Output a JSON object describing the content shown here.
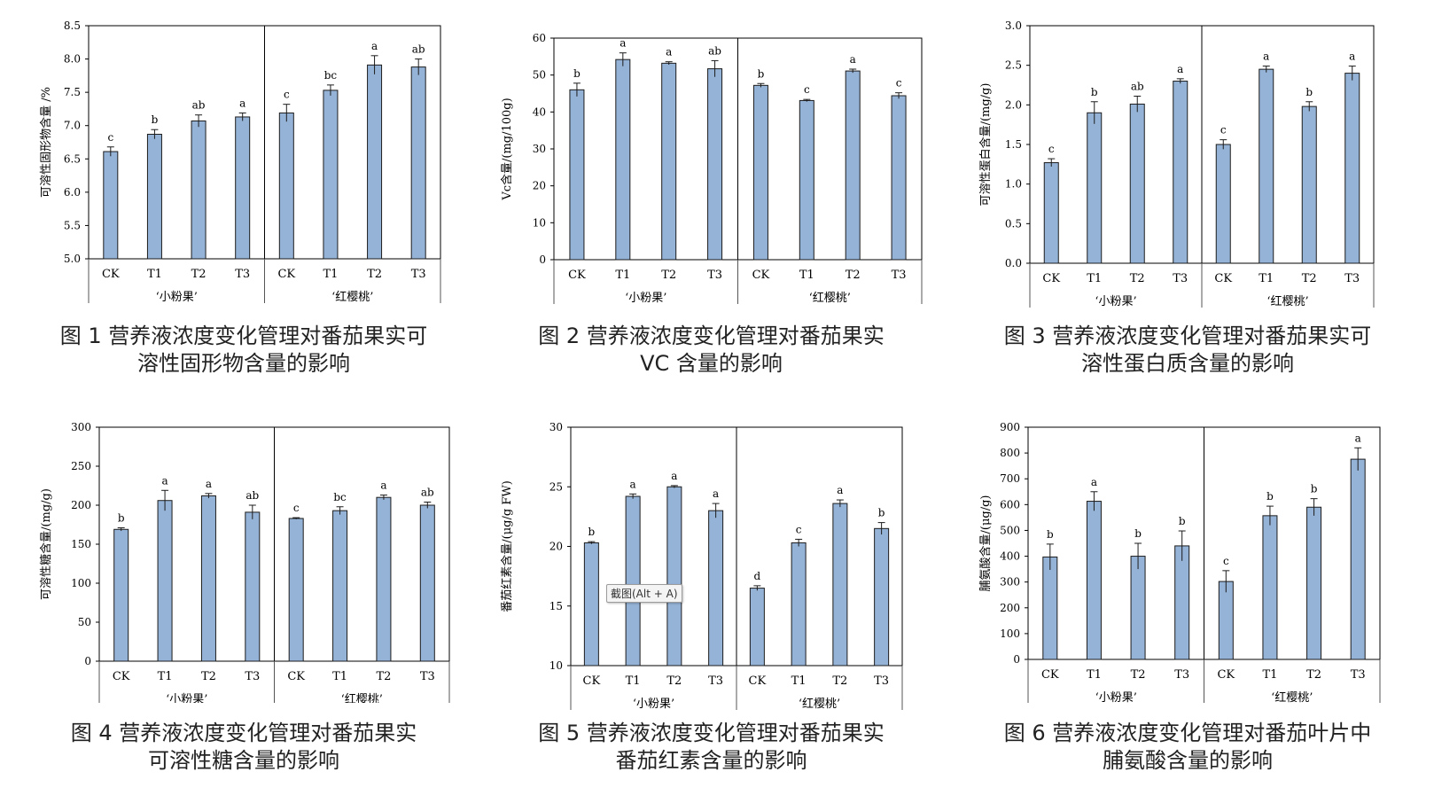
{
  "tooltip": "截图(Alt + A)",
  "colors": {
    "bar_fill": "#95b3d7",
    "bar_stroke": "#1c1c1c",
    "axis": "#000000",
    "label": "#000000"
  },
  "charts": [
    {
      "caption_lines": [
        "图 1 营养液浓度变化管理对番茄果实可",
        "溶性固形物含量的影响"
      ],
      "chart_data": {
        "type": "bar",
        "ylabel": "可溶性固形物含量 /%",
        "ylim": [
          5.0,
          8.5
        ],
        "yticks": [
          "5.0",
          "5.5",
          "6.0",
          "6.5",
          "7.0",
          "7.5",
          "8.0",
          "8.5"
        ],
        "groups": [
          {
            "name": "‘小粉果’",
            "bars": [
              {
                "label": "CK",
                "value": 6.61,
                "err": 0.07,
                "sig": "c"
              },
              {
                "label": "T1",
                "value": 6.87,
                "err": 0.07,
                "sig": "b"
              },
              {
                "label": "T2",
                "value": 7.07,
                "err": 0.09,
                "sig": "ab"
              },
              {
                "label": "T3",
                "value": 7.13,
                "err": 0.06,
                "sig": "a"
              }
            ]
          },
          {
            "name": "‘红樱桃’",
            "bars": [
              {
                "label": "CK",
                "value": 7.19,
                "err": 0.13,
                "sig": "c"
              },
              {
                "label": "T1",
                "value": 7.53,
                "err": 0.08,
                "sig": "bc"
              },
              {
                "label": "T2",
                "value": 7.91,
                "err": 0.14,
                "sig": "a"
              },
              {
                "label": "T3",
                "value": 7.88,
                "err": 0.12,
                "sig": "ab"
              }
            ]
          }
        ]
      }
    },
    {
      "caption_lines": [
        "图 2 营养液浓度变化管理对番茄果实",
        "VC 含量的影响"
      ],
      "chart_data": {
        "type": "bar",
        "ylabel": "Vc含量/(mg/100g)",
        "ylim": [
          0,
          60
        ],
        "yticks": [
          "0",
          "10",
          "20",
          "30",
          "40",
          "50",
          "60"
        ],
        "groups": [
          {
            "name": "‘小粉果’",
            "bars": [
              {
                "label": "CK",
                "value": 46.0,
                "err": 1.8,
                "sig": "b"
              },
              {
                "label": "T1",
                "value": 54.2,
                "err": 1.8,
                "sig": "a"
              },
              {
                "label": "T2",
                "value": 53.2,
                "err": 0.4,
                "sig": "a"
              },
              {
                "label": "T3",
                "value": 51.7,
                "err": 2.2,
                "sig": "ab"
              }
            ]
          },
          {
            "name": "‘红樱桃’",
            "bars": [
              {
                "label": "CK",
                "value": 47.2,
                "err": 0.5,
                "sig": "b"
              },
              {
                "label": "T1",
                "value": 43.1,
                "err": 0.3,
                "sig": "c"
              },
              {
                "label": "T2",
                "value": 51.1,
                "err": 0.5,
                "sig": "a"
              },
              {
                "label": "T3",
                "value": 44.4,
                "err": 0.8,
                "sig": "c"
              }
            ]
          }
        ]
      }
    },
    {
      "caption_lines": [
        "图 3 营养液浓度变化管理对番茄果实可",
        "溶性蛋白质含量的影响"
      ],
      "chart_data": {
        "type": "bar",
        "ylabel": "可溶性蛋白含量/(mg/g)",
        "ylim": [
          0,
          3.0
        ],
        "yticks": [
          "0.0",
          "0.5",
          "1.0",
          "1.5",
          "2.0",
          "2.5",
          "3.0"
        ],
        "groups": [
          {
            "name": "‘小粉果’",
            "bars": [
              {
                "label": "CK",
                "value": 1.27,
                "err": 0.05,
                "sig": "c"
              },
              {
                "label": "T1",
                "value": 1.9,
                "err": 0.14,
                "sig": "b"
              },
              {
                "label": "T2",
                "value": 2.01,
                "err": 0.1,
                "sig": "ab"
              },
              {
                "label": "T3",
                "value": 2.3,
                "err": 0.03,
                "sig": "a"
              }
            ]
          },
          {
            "name": "‘红樱桃’",
            "bars": [
              {
                "label": "CK",
                "value": 1.5,
                "err": 0.06,
                "sig": "c"
              },
              {
                "label": "T1",
                "value": 2.45,
                "err": 0.04,
                "sig": "a"
              },
              {
                "label": "T2",
                "value": 1.98,
                "err": 0.06,
                "sig": "b"
              },
              {
                "label": "T3",
                "value": 2.4,
                "err": 0.09,
                "sig": "a"
              }
            ]
          }
        ]
      }
    },
    {
      "caption_lines": [
        "图 4 营养液浓度变化管理对番茄果实",
        "可溶性糖含量的影响"
      ],
      "chart_data": {
        "type": "bar",
        "ylabel": "可溶性糖含量/(mg/g)",
        "ylim": [
          0,
          300
        ],
        "yticks": [
          "0",
          "50",
          "100",
          "150",
          "200",
          "250",
          "300"
        ],
        "groups": [
          {
            "name": "‘小粉果’",
            "bars": [
              {
                "label": "CK",
                "value": 169,
                "err": 2,
                "sig": "b"
              },
              {
                "label": "T1",
                "value": 206,
                "err": 13,
                "sig": "a"
              },
              {
                "label": "T2",
                "value": 212,
                "err": 3,
                "sig": "a"
              },
              {
                "label": "T3",
                "value": 191,
                "err": 9,
                "sig": "ab"
              }
            ]
          },
          {
            "name": "‘红樱桃’",
            "bars": [
              {
                "label": "CK",
                "value": 183,
                "err": 1,
                "sig": "c"
              },
              {
                "label": "T1",
                "value": 193,
                "err": 5,
                "sig": "bc"
              },
              {
                "label": "T2",
                "value": 210,
                "err": 3,
                "sig": "a"
              },
              {
                "label": "T3",
                "value": 200,
                "err": 4,
                "sig": "ab"
              }
            ]
          }
        ]
      }
    },
    {
      "caption_lines": [
        "图 5 营养液浓度变化管理对番茄果实",
        "番茄红素含量的影响"
      ],
      "chart_data": {
        "type": "bar",
        "ylabel": "番茄红素含量/(μg/g FW)",
        "ylim": [
          10,
          30
        ],
        "yticks": [
          "10",
          "15",
          "20",
          "25",
          "30"
        ],
        "groups": [
          {
            "name": "‘小粉果’",
            "bars": [
              {
                "label": "CK",
                "value": 20.3,
                "err": 0.1,
                "sig": "b"
              },
              {
                "label": "T1",
                "value": 24.2,
                "err": 0.2,
                "sig": "a"
              },
              {
                "label": "T2",
                "value": 25.0,
                "err": 0.1,
                "sig": "a"
              },
              {
                "label": "T3",
                "value": 23.0,
                "err": 0.6,
                "sig": "a"
              }
            ]
          },
          {
            "name": "‘红樱桃’",
            "bars": [
              {
                "label": "CK",
                "value": 16.5,
                "err": 0.2,
                "sig": "d"
              },
              {
                "label": "T1",
                "value": 20.3,
                "err": 0.3,
                "sig": "c"
              },
              {
                "label": "T2",
                "value": 23.6,
                "err": 0.3,
                "sig": "a"
              },
              {
                "label": "T3",
                "value": 21.5,
                "err": 0.5,
                "sig": "b"
              }
            ]
          }
        ]
      }
    },
    {
      "caption_lines": [
        "图 6 营养液浓度变化管理对番茄叶片中",
        "脯氨酸含量的影响"
      ],
      "chart_data": {
        "type": "bar",
        "ylabel": "脯氨酸含量/(μg/g)",
        "ylim": [
          0,
          900
        ],
        "yticks": [
          "0",
          "100",
          "200",
          "300",
          "400",
          "500",
          "600",
          "700",
          "800",
          "900"
        ],
        "groups": [
          {
            "name": "‘小粉果’",
            "bars": [
              {
                "label": "CK",
                "value": 397,
                "err": 50,
                "sig": "b"
              },
              {
                "label": "T1",
                "value": 613,
                "err": 37,
                "sig": "a"
              },
              {
                "label": "T2",
                "value": 400,
                "err": 50,
                "sig": "b"
              },
              {
                "label": "T3",
                "value": 440,
                "err": 58,
                "sig": "b"
              }
            ]
          },
          {
            "name": "‘红樱桃’",
            "bars": [
              {
                "label": "CK",
                "value": 302,
                "err": 42,
                "sig": "c"
              },
              {
                "label": "T1",
                "value": 557,
                "err": 37,
                "sig": "b"
              },
              {
                "label": "T2",
                "value": 590,
                "err": 33,
                "sig": "b"
              },
              {
                "label": "T3",
                "value": 776,
                "err": 44,
                "sig": "a"
              }
            ]
          }
        ]
      }
    }
  ]
}
